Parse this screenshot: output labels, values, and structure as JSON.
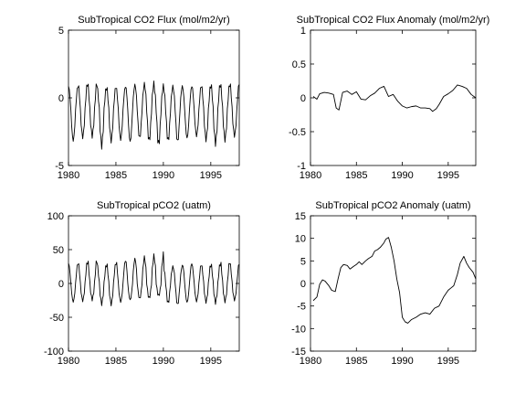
{
  "chart_data": [
    {
      "type": "line",
      "title": "SubTropical CO2 Flux (mol/m2/yr)",
      "xlim": [
        1980,
        1998
      ],
      "ylim": [
        -5,
        5
      ],
      "xticks": [
        "1980",
        "1985",
        "1990",
        "1995"
      ],
      "yticks": [
        "-5",
        "0",
        "5"
      ],
      "grid": false,
      "series": [
        {
          "kind": "seasonal",
          "start": 1980.0,
          "end": 1998.0,
          "step": 0.0833,
          "mean": -0.9,
          "peaks": [
            1.05,
            1.25,
            1.3,
            0.9,
            1.0,
            1.0,
            1.15,
            1.2,
            1.25,
            1.05,
            1.0,
            1.05,
            1.05,
            1.1,
            1.1,
            1.2,
            1.2,
            1.3
          ],
          "troughs": [
            -3.4,
            -3.1,
            -3.0,
            -3.8,
            -3.4,
            -3.3,
            -3.5,
            -3.2,
            -3.4,
            -3.7,
            -3.4,
            -3.5,
            -3.2,
            -3.0,
            -3.3,
            -3.6,
            -3.3,
            -3.0
          ]
        }
      ]
    },
    {
      "type": "line",
      "title": "SubTropical CO2 Flux Anomaly (mol/m2/yr)",
      "xlim": [
        1980,
        1998
      ],
      "ylim": [
        -1,
        1
      ],
      "xticks": [
        "1980",
        "1985",
        "1990",
        "1995"
      ],
      "yticks": [
        "-1",
        "-0.5",
        "0",
        "0.5",
        "1"
      ],
      "grid": false,
      "series": [
        {
          "kind": "points",
          "x": [
            1980.3,
            1980.7,
            1981.0,
            1981.5,
            1982.0,
            1982.5,
            1982.8,
            1983.1,
            1983.5,
            1984.0,
            1984.5,
            1985.0,
            1985.5,
            1986.0,
            1986.5,
            1987.0,
            1987.5,
            1988.0,
            1988.5,
            1989.0,
            1989.5,
            1990.0,
            1990.5,
            1991.0,
            1991.5,
            1992.0,
            1992.5,
            1993.0,
            1993.3,
            1993.7,
            1994.0,
            1994.5,
            1995.0,
            1995.5,
            1996.0,
            1996.5,
            1997.0,
            1997.5,
            1998.0
          ],
          "y": [
            0.02,
            -0.02,
            0.06,
            0.08,
            0.07,
            0.05,
            -0.15,
            -0.18,
            0.08,
            0.1,
            0.05,
            0.09,
            -0.02,
            -0.03,
            0.03,
            0.07,
            0.14,
            0.17,
            0.02,
            0.05,
            -0.05,
            -0.12,
            -0.15,
            -0.13,
            -0.12,
            -0.15,
            -0.15,
            -0.16,
            -0.2,
            -0.16,
            -0.1,
            0.02,
            0.06,
            0.11,
            0.19,
            0.17,
            0.14,
            0.05,
            0.0
          ]
        }
      ]
    },
    {
      "type": "line",
      "title": "SubTropical pCO2 (uatm)",
      "xlim": [
        1980,
        1998
      ],
      "ylim": [
        -100,
        100
      ],
      "xticks": [
        "1980",
        "1985",
        "1990",
        "1995"
      ],
      "yticks": [
        "-100",
        "-50",
        "0",
        "50",
        "100"
      ],
      "grid": false,
      "series": [
        {
          "kind": "seasonal",
          "start": 1980.0,
          "end": 1998.0,
          "step": 0.0833,
          "mean": 0,
          "peaks": [
            33,
            35,
            38,
            30,
            33,
            37,
            40,
            42,
            44,
            47,
            27,
            29,
            33,
            31,
            30,
            32,
            35,
            33
          ],
          "troughs": [
            -30,
            -28,
            -26,
            -33,
            -34,
            -30,
            -27,
            -25,
            -24,
            -20,
            -32,
            -35,
            -31,
            -29,
            -30,
            -31,
            -29,
            -27
          ]
        }
      ]
    },
    {
      "type": "line",
      "title": "SubTropical pCO2 Anomaly (uatm)",
      "xlim": [
        1980,
        1998
      ],
      "ylim": [
        -15,
        15
      ],
      "xticks": [
        "1980",
        "1985",
        "1990",
        "1995"
      ],
      "yticks": [
        "-15",
        "-10",
        "-5",
        "0",
        "5",
        "10",
        "15"
      ],
      "grid": false,
      "series": [
        {
          "kind": "points",
          "x": [
            1980.3,
            1980.7,
            1981.0,
            1981.3,
            1981.6,
            1982.0,
            1982.3,
            1982.7,
            1983.0,
            1983.3,
            1983.6,
            1984.0,
            1984.3,
            1984.7,
            1985.0,
            1985.3,
            1985.6,
            1986.0,
            1986.3,
            1986.7,
            1987.0,
            1987.3,
            1987.6,
            1988.0,
            1988.2,
            1988.5,
            1988.8,
            1989.1,
            1989.4,
            1989.7,
            1990.0,
            1990.3,
            1990.6,
            1991.0,
            1991.5,
            1992.0,
            1992.5,
            1993.0,
            1993.5,
            1994.0,
            1994.5,
            1995.0,
            1995.3,
            1995.6,
            1996.0,
            1996.3,
            1996.7,
            1997.0,
            1997.3,
            1997.7,
            1998.0
          ],
          "y": [
            -3.8,
            -3.0,
            -0.2,
            0.8,
            0.5,
            -0.5,
            -1.5,
            -1.8,
            1.0,
            3.5,
            4.2,
            4.0,
            3.2,
            3.8,
            4.2,
            4.8,
            4.2,
            5.0,
            5.5,
            6.0,
            7.2,
            7.5,
            8.0,
            9.0,
            9.8,
            10.2,
            8.0,
            5.0,
            1.0,
            -2.0,
            -7.5,
            -8.5,
            -8.8,
            -8.0,
            -7.5,
            -6.8,
            -6.5,
            -6.8,
            -5.5,
            -5.0,
            -3.0,
            -1.5,
            -1.0,
            -0.5,
            2.0,
            4.5,
            6.0,
            4.5,
            3.5,
            2.5,
            1.0
          ]
        }
      ]
    }
  ]
}
